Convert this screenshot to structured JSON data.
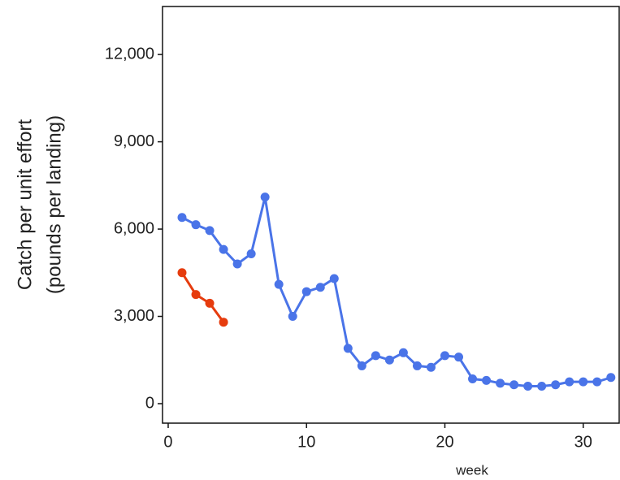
{
  "chart_data": {
    "type": "line",
    "ylabel": [
      "Catch per unit effort",
      "(pounds per landing)"
    ],
    "xlabel": "week",
    "series": [
      {
        "color": "#4a74e8",
        "x": [
          1,
          2,
          3,
          4,
          5,
          6,
          7,
          8,
          9,
          10,
          11,
          12,
          13,
          14,
          15,
          16,
          17,
          18,
          19,
          20,
          21,
          22,
          23,
          24,
          25,
          26,
          27,
          28,
          29,
          30,
          31,
          32
        ],
        "values": [
          6400,
          6150,
          5950,
          5300,
          4800,
          5150,
          7100,
          4100,
          3000,
          3850,
          4000,
          4300,
          1900,
          1300,
          1650,
          1500,
          1750,
          1300,
          1250,
          1650,
          1600,
          850,
          800,
          700,
          650,
          600,
          600,
          650,
          750,
          750,
          750,
          900
        ]
      },
      {
        "color": "#e63c0e",
        "x": [
          1,
          2,
          3,
          4
        ],
        "values": [
          4500,
          3750,
          3450,
          2800
        ]
      }
    ],
    "xlim": [
      -0.41,
      32.6
    ],
    "ylim": [
      -670,
      13650
    ],
    "xticks": [
      0,
      10,
      20,
      30
    ],
    "yticks": [
      0,
      {
        "value": 3000,
        "label": "3,000"
      },
      {
        "value": 6000,
        "label": "6,000"
      },
      {
        "value": 9000,
        "label": "9,000"
      },
      {
        "value": 12000,
        "label": "12,000"
      }
    ]
  }
}
